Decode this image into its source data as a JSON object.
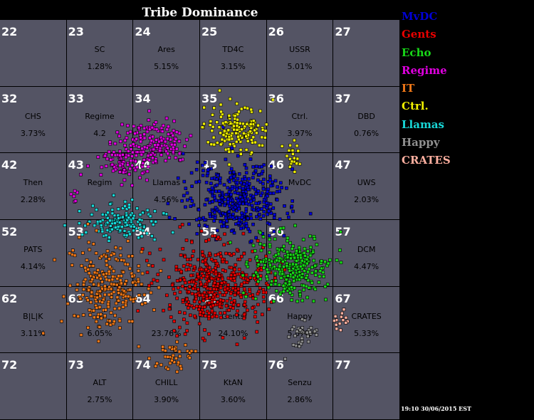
{
  "title": "Tribe Dominance",
  "timestamp": "19:10 30/06/2015 EST",
  "legend": [
    {
      "name": "MvDC",
      "color": "#0000d8"
    },
    {
      "name": "Gents",
      "color": "#e80000"
    },
    {
      "name": "Echo",
      "color": "#18d818"
    },
    {
      "name": "Regime",
      "color": "#e000e0"
    },
    {
      "name": "IT",
      "color": "#f07818"
    },
    {
      "name": "Ctrl.",
      "color": "#f0f000"
    },
    {
      "name": "Llamas",
      "color": "#18d8d8"
    },
    {
      "name": "Happy",
      "color": "#909090"
    },
    {
      "name": "CRATES",
      "color": "#ffb0a0"
    }
  ],
  "grid": {
    "rows": [
      [
        {
          "num": "22",
          "tribe": "",
          "pct": ""
        },
        {
          "num": "23",
          "tribe": "SC",
          "pct": "1.28%"
        },
        {
          "num": "24",
          "tribe": "Ares",
          "pct": "5.15%"
        },
        {
          "num": "25",
          "tribe": "TD4C",
          "pct": "3.15%"
        },
        {
          "num": "26",
          "tribe": "USSR",
          "pct": "5.01%"
        },
        {
          "num": "27",
          "tribe": "",
          "pct": ""
        }
      ],
      [
        {
          "num": "32",
          "tribe": "CHS",
          "pct": "3.73%"
        },
        {
          "num": "33",
          "tribe": "Regime",
          "pct": "4.2"
        },
        {
          "num": "34",
          "tribe": "",
          "pct": ""
        },
        {
          "num": "35",
          "tribe": "",
          "pct": ""
        },
        {
          "num": "36",
          "tribe": "Ctrl.",
          "pct": "3.97%"
        },
        {
          "num": "37",
          "tribe": "DBD",
          "pct": "0.76%"
        }
      ],
      [
        {
          "num": "42",
          "tribe": "Then",
          "pct": "2.28%"
        },
        {
          "num": "43",
          "tribe": "Regim",
          "pct": ""
        },
        {
          "num": "44",
          "tribe": "Llamas",
          "pct": "4.56%"
        },
        {
          "num": "45",
          "tribe": "",
          "pct": ""
        },
        {
          "num": "46",
          "tribe": "MvDC",
          "pct": ""
        },
        {
          "num": "47",
          "tribe": "UWS",
          "pct": "2.03%"
        }
      ],
      [
        {
          "num": "52",
          "tribe": "PATS",
          "pct": "4.14%"
        },
        {
          "num": "53",
          "tribe": "",
          "pct": ""
        },
        {
          "num": "54",
          "tribe": "",
          "pct": ""
        },
        {
          "num": "55",
          "tribe": "",
          "pct": ""
        },
        {
          "num": "56",
          "tribe": "",
          "pct": ""
        },
        {
          "num": "57",
          "tribe": "DCM",
          "pct": "4.47%"
        }
      ],
      [
        {
          "num": "62",
          "tribe": "B|L|K",
          "pct": "3.11%"
        },
        {
          "num": "63",
          "tribe": "IT",
          "pct": "6.05%"
        },
        {
          "num": "64",
          "tribe": "",
          "pct": "23.76%"
        },
        {
          "num": "65",
          "tribe": "Gents",
          "pct": "24.10%"
        },
        {
          "num": "66",
          "tribe": "Happy",
          "pct": "5.87%"
        },
        {
          "num": "67",
          "tribe": "CRATES",
          "pct": "5.33%"
        }
      ],
      [
        {
          "num": "72",
          "tribe": "",
          "pct": ""
        },
        {
          "num": "73",
          "tribe": "ALT",
          "pct": "2.75%"
        },
        {
          "num": "74",
          "tribe": "CHILL",
          "pct": "3.90%"
        },
        {
          "num": "75",
          "tribe": "KtAN",
          "pct": "3.60%"
        },
        {
          "num": "76",
          "tribe": "Senzu",
          "pct": "2.86%"
        },
        {
          "num": "77",
          "tribe": "",
          "pct": ""
        }
      ]
    ]
  },
  "villages": [
    {
      "tribe": "Regime",
      "clusters": [
        [
          215,
          170,
          40,
          28,
          160
        ],
        [
          170,
          200,
          28,
          22,
          90
        ],
        [
          105,
          245,
          8,
          8,
          6
        ]
      ]
    },
    {
      "tribe": "Ctrl.",
      "clusters": [
        [
          330,
          150,
          38,
          26,
          160
        ],
        [
          410,
          185,
          10,
          18,
          22
        ]
      ]
    },
    {
      "tribe": "MvDC",
      "clusters": [
        [
          330,
          250,
          55,
          42,
          420
        ]
      ]
    },
    {
      "tribe": "Llamas",
      "clusters": [
        [
          170,
          282,
          45,
          20,
          150
        ]
      ]
    },
    {
      "tribe": "Gents",
      "clusters": [
        [
          300,
          370,
          60,
          48,
          480
        ]
      ]
    },
    {
      "tribe": "Echo",
      "clusters": [
        [
          405,
          345,
          42,
          38,
          300
        ]
      ]
    },
    {
      "tribe": "IT",
      "clusters": [
        [
          150,
          375,
          45,
          50,
          260
        ],
        [
          240,
          470,
          22,
          18,
          40
        ]
      ]
    },
    {
      "tribe": "Happy",
      "clusters": [
        [
          420,
          440,
          18,
          16,
          35
        ]
      ]
    },
    {
      "tribe": "CRATES",
      "clusters": [
        [
          480,
          420,
          10,
          10,
          14
        ]
      ]
    }
  ]
}
